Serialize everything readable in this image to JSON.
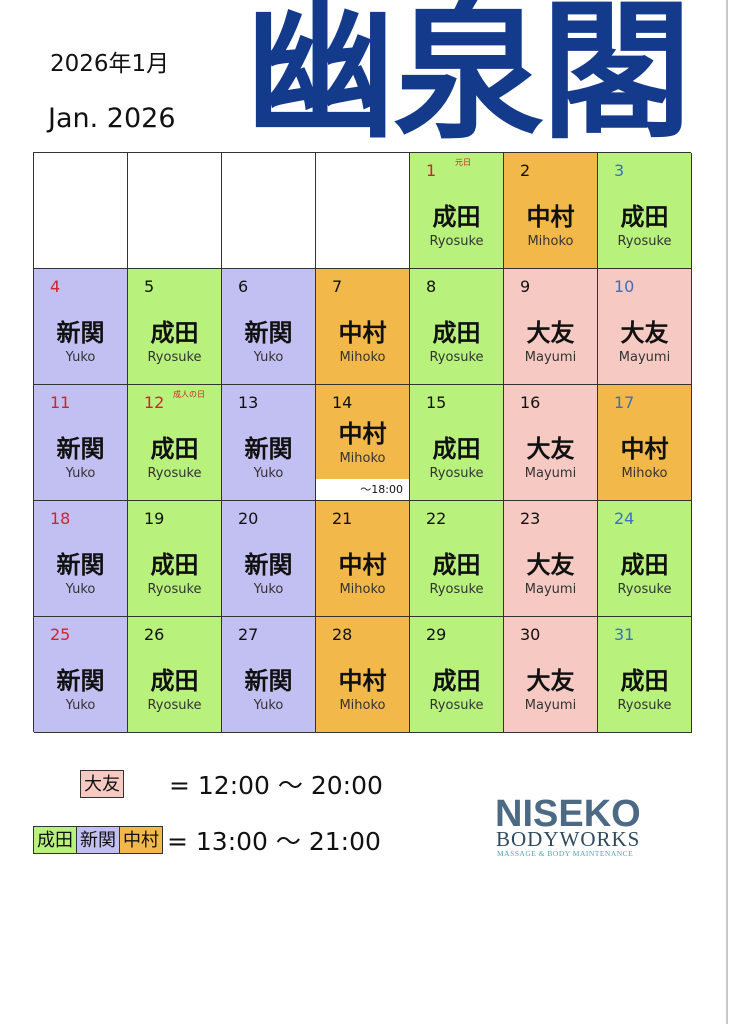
{
  "header": {
    "date_jp": "2026年1月",
    "date_en": "Jan. 2026",
    "title": "幽泉閣"
  },
  "colors": {
    "narita": "#b8f17c",
    "shinzeki": "#c2bff2",
    "nakamura": "#f3b84a",
    "otomo": "#f6c9c3",
    "title": "#143a8c"
  },
  "staff": {
    "narita": {
      "name": "成田",
      "roman": "Ryosuke"
    },
    "shinzeki": {
      "name": "新関",
      "roman": "Yuko"
    },
    "nakamura": {
      "name": "中村",
      "roman": "Mihoko"
    },
    "otomo": {
      "name": "大友",
      "roman": "Mayumi"
    }
  },
  "calendar": [
    {
      "day": "",
      "staff": ""
    },
    {
      "day": "",
      "staff": ""
    },
    {
      "day": "",
      "staff": ""
    },
    {
      "day": "",
      "staff": ""
    },
    {
      "day": "1",
      "staff": "narita",
      "day_color": "red",
      "holiday": "元日"
    },
    {
      "day": "2",
      "staff": "nakamura"
    },
    {
      "day": "3",
      "staff": "narita",
      "day_color": "blue"
    },
    {
      "day": "4",
      "staff": "shinzeki",
      "day_color": "red"
    },
    {
      "day": "5",
      "staff": "narita"
    },
    {
      "day": "6",
      "staff": "shinzeki"
    },
    {
      "day": "7",
      "staff": "nakamura"
    },
    {
      "day": "8",
      "staff": "narita"
    },
    {
      "day": "9",
      "staff": "otomo"
    },
    {
      "day": "10",
      "staff": "otomo",
      "day_color": "blue"
    },
    {
      "day": "11",
      "staff": "shinzeki",
      "day_color": "red"
    },
    {
      "day": "12",
      "staff": "narita",
      "day_color": "red",
      "holiday": "成人の日"
    },
    {
      "day": "13",
      "staff": "shinzeki"
    },
    {
      "day": "14",
      "staff": "nakamura",
      "note": "～18:00"
    },
    {
      "day": "15",
      "staff": "narita"
    },
    {
      "day": "16",
      "staff": "otomo"
    },
    {
      "day": "17",
      "staff": "nakamura",
      "day_color": "blue"
    },
    {
      "day": "18",
      "staff": "shinzeki",
      "day_color": "red"
    },
    {
      "day": "19",
      "staff": "narita"
    },
    {
      "day": "20",
      "staff": "shinzeki"
    },
    {
      "day": "21",
      "staff": "nakamura"
    },
    {
      "day": "22",
      "staff": "narita"
    },
    {
      "day": "23",
      "staff": "otomo"
    },
    {
      "day": "24",
      "staff": "narita",
      "day_color": "blue"
    },
    {
      "day": "25",
      "staff": "shinzeki",
      "day_color": "red"
    },
    {
      "day": "26",
      "staff": "narita"
    },
    {
      "day": "27",
      "staff": "shinzeki"
    },
    {
      "day": "28",
      "staff": "nakamura"
    },
    {
      "day": "29",
      "staff": "narita"
    },
    {
      "day": "30",
      "staff": "otomo"
    },
    {
      "day": "31",
      "staff": "narita",
      "day_color": "blue"
    }
  ],
  "legend": {
    "row1": {
      "swatches": [
        "大友"
      ],
      "time": "= 12:00 ～ 20:00"
    },
    "row2": {
      "swatches": [
        "成田",
        "新関",
        "中村"
      ],
      "time": "= 13:00 ～ 21:00"
    }
  },
  "logo": {
    "line1": "NISEKO",
    "line2": "BODYWORKS",
    "line3": "MASSAGE & BODY MAINTENANCE"
  }
}
